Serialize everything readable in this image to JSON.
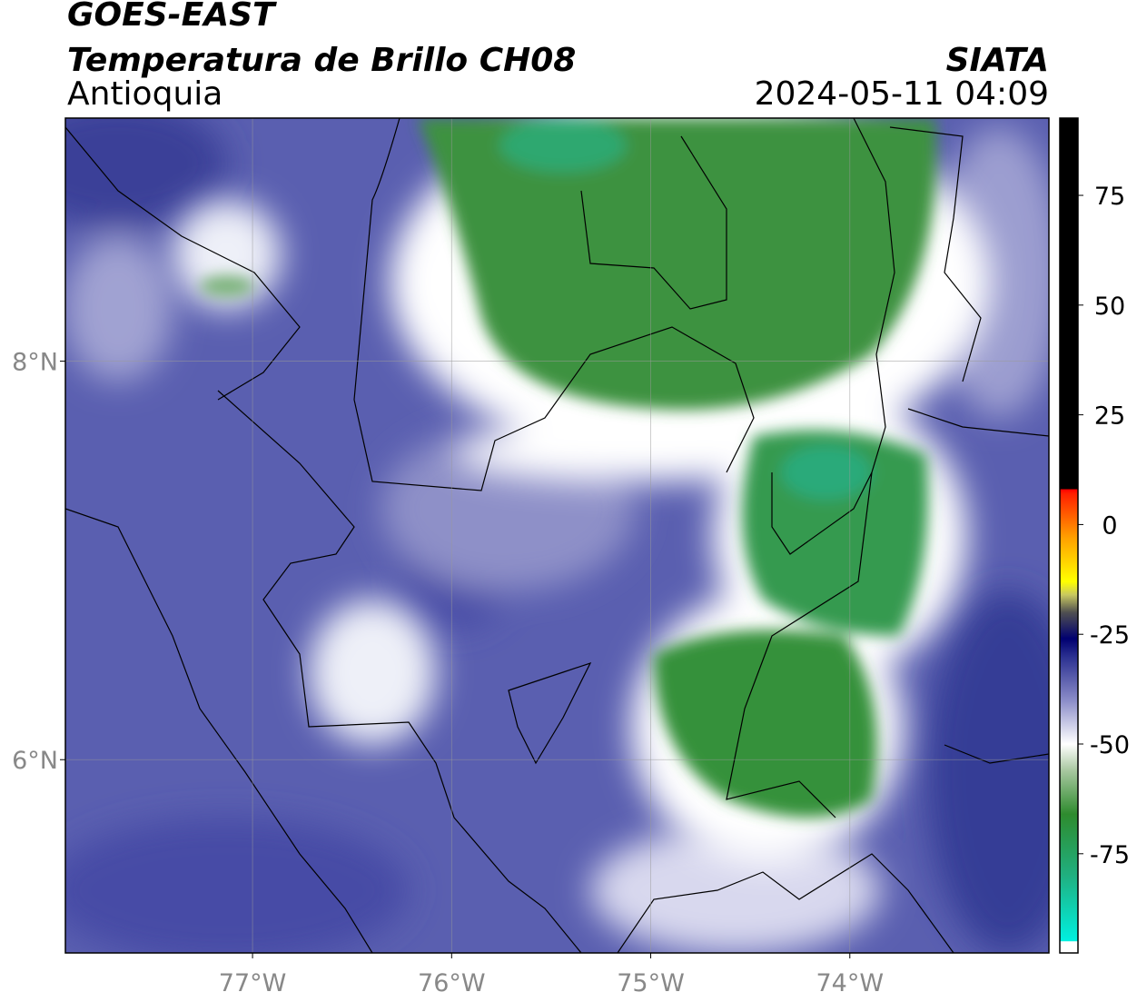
{
  "chart_data": {
    "type": "map",
    "title": "GOES-EAST",
    "subtitle": "Temperatura de Brillo CH08",
    "region": "Antioquia",
    "source": "SIATA",
    "datetime": "2024-05-11 04:09",
    "xlim": [
      -77.94,
      -73.0
    ],
    "ylim": [
      5.03,
      9.22
    ],
    "xticks": [
      {
        "value": -77,
        "label": "77°W"
      },
      {
        "value": -76,
        "label": "76°W"
      },
      {
        "value": -75,
        "label": "75°W"
      },
      {
        "value": -74,
        "label": "74°W"
      }
    ],
    "yticks": [
      {
        "value": 6,
        "label": "6°N"
      },
      {
        "value": 8,
        "label": "8°N"
      }
    ],
    "grid": true,
    "colorbar_lim": [
      -97.6,
      92.6
    ],
    "colorbar_ticks": [
      75,
      50,
      25,
      0,
      -25,
      -50,
      -75
    ],
    "colormap": [
      {
        "value": -97.6,
        "color": "#ffffff"
      },
      {
        "value": -95,
        "color": "#ffffff"
      },
      {
        "value": -94.9,
        "color": "#00f0e0"
      },
      {
        "value": -80,
        "color": "#20b080"
      },
      {
        "value": -66,
        "color": "#2e8b2e"
      },
      {
        "value": -56,
        "color": "#a8c8a0"
      },
      {
        "value": -50,
        "color": "#ffffff"
      },
      {
        "value": -40,
        "color": "#8a8cc8"
      },
      {
        "value": -30,
        "color": "#2a2f90"
      },
      {
        "value": -26,
        "color": "#000070"
      },
      {
        "value": -20,
        "color": "#505050"
      },
      {
        "value": -16,
        "color": "#c8c860"
      },
      {
        "value": -13,
        "color": "#ffff00"
      },
      {
        "value": -3,
        "color": "#ffa000"
      },
      {
        "value": 7,
        "color": "#ff2000"
      },
      {
        "value": 8,
        "color": "#ff0000"
      },
      {
        "value": 8.1,
        "color": "#000000"
      },
      {
        "value": 92.6,
        "color": "#000000"
      }
    ]
  }
}
